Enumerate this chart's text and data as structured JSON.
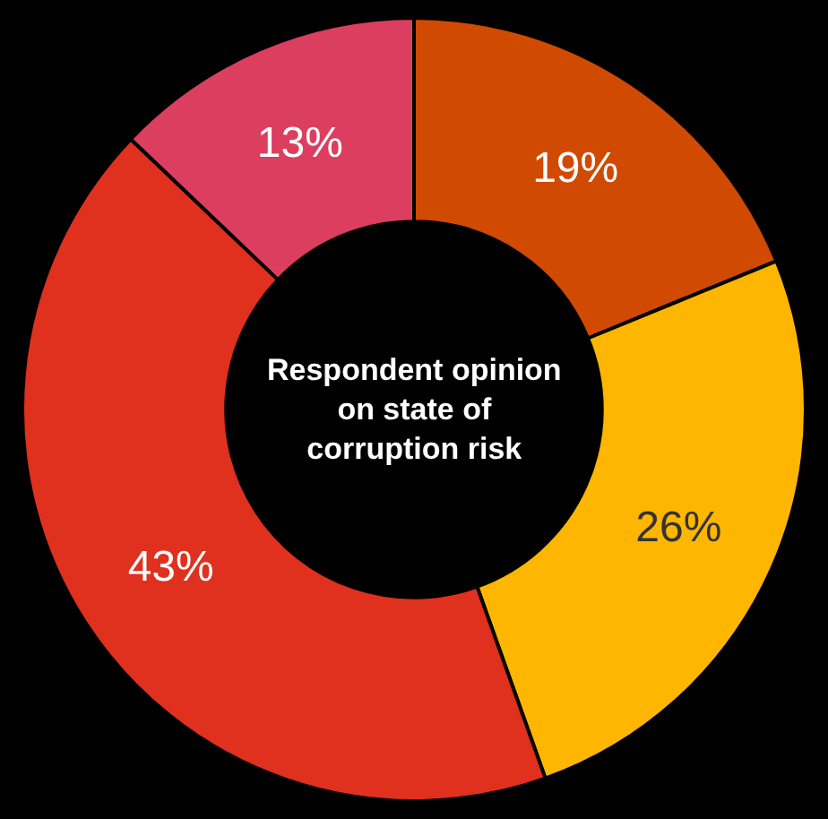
{
  "chart_data": {
    "type": "donut",
    "title": "Respondent opinion on state of corruption risk",
    "categories": [
      null,
      null,
      null,
      null
    ],
    "values": [
      19,
      26,
      43,
      13
    ],
    "colors": [
      "#d04a02",
      "#ffb600",
      "#e0301e",
      "#db3e5f"
    ],
    "value_labels": [
      "19%",
      "26%",
      "43%",
      "13%"
    ],
    "legend": false
  }
}
